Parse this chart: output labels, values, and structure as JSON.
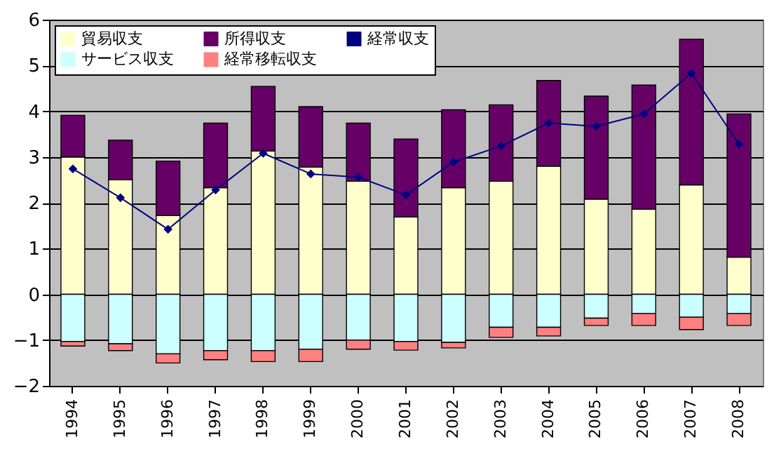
{
  "chart_data": {
    "type": "bar",
    "stacked": true,
    "categories": [
      "1994",
      "1995",
      "1996",
      "1997",
      "1998",
      "1999",
      "2000",
      "2001",
      "2002",
      "2003",
      "2004",
      "2005",
      "2006",
      "2007",
      "2008"
    ],
    "series": [
      {
        "name": "貿易収支",
        "color": "#ffffcc",
        "values": [
          3.0,
          2.5,
          1.72,
          2.33,
          3.13,
          2.78,
          2.47,
          1.69,
          2.33,
          2.47,
          2.8,
          2.08,
          1.86,
          2.39,
          0.81
        ]
      },
      {
        "name": "サービス収支",
        "color": "#ccffff",
        "values": [
          -1.03,
          -1.08,
          -1.3,
          -1.23,
          -1.23,
          -1.2,
          -1.0,
          -1.03,
          -1.05,
          -0.72,
          -0.72,
          -0.52,
          -0.42,
          -0.5,
          -0.42
        ]
      },
      {
        "name": "所得収支",
        "color": "#660066",
        "values": [
          0.91,
          0.87,
          1.19,
          1.41,
          1.41,
          1.32,
          1.27,
          1.7,
          1.7,
          1.67,
          1.87,
          2.25,
          2.71,
          3.18,
          3.13
        ]
      },
      {
        "name": "経常移転収支",
        "color": "#ff8080",
        "values": [
          -0.1,
          -0.15,
          -0.2,
          -0.2,
          -0.24,
          -0.27,
          -0.2,
          -0.19,
          -0.12,
          -0.22,
          -0.19,
          -0.16,
          -0.26,
          -0.27,
          -0.26
        ]
      },
      {
        "name": "経常収支",
        "type": "line",
        "marker": "diamond",
        "color": "#000080",
        "values": [
          2.74,
          2.11,
          1.42,
          2.28,
          3.08,
          2.63,
          2.56,
          2.17,
          2.89,
          3.24,
          3.74,
          3.67,
          3.94,
          4.83,
          3.28
        ]
      }
    ],
    "ylim": [
      -2,
      6
    ],
    "yticks": [
      -2,
      -1,
      0,
      1,
      2,
      3,
      4,
      5,
      6
    ],
    "grid": "y",
    "legend": "top left"
  }
}
